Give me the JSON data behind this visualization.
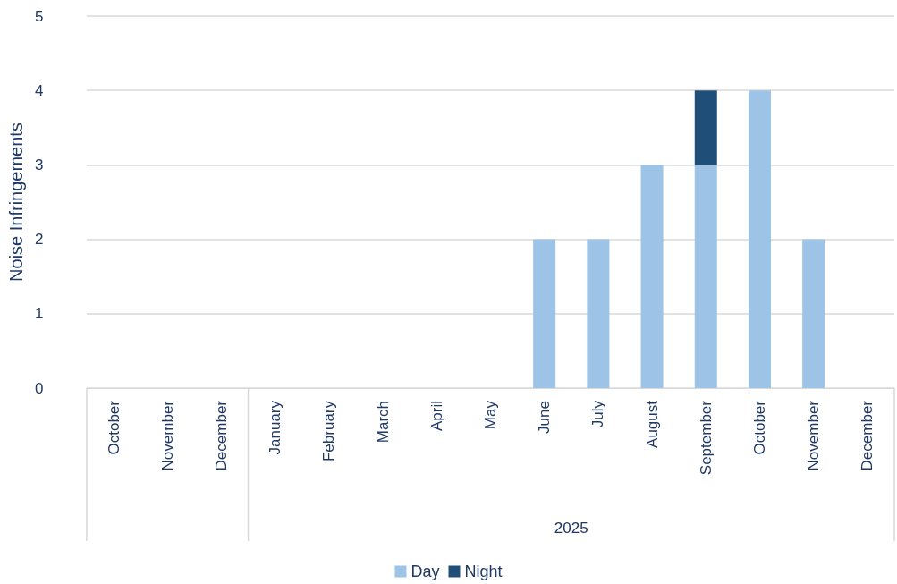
{
  "chart_data": {
    "type": "bar",
    "stacked": true,
    "ylabel": "Noise Infringements",
    "categories": [
      "October",
      "November",
      "December",
      "January",
      "February",
      "March",
      "April",
      "May",
      "June",
      "July",
      "August",
      "September",
      "October",
      "November",
      "December"
    ],
    "series": [
      {
        "name": "Day",
        "color": "#9dc3e6",
        "values": [
          0,
          0,
          0,
          0,
          0,
          0,
          0,
          0,
          2,
          2,
          3,
          3,
          4,
          2,
          0
        ]
      },
      {
        "name": "Night",
        "color": "#1f4e79",
        "values": [
          0,
          0,
          0,
          0,
          0,
          0,
          0,
          0,
          0,
          0,
          0,
          1,
          0,
          0,
          0
        ]
      }
    ],
    "ylim": [
      0,
      5
    ],
    "yticks": [
      0,
      1,
      2,
      3,
      4,
      5
    ],
    "grid": "y",
    "legend": "bottom",
    "annotations": [
      "2025"
    ]
  }
}
